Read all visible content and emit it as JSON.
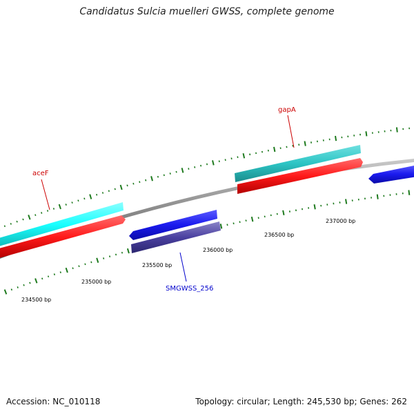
{
  "title": "Candidatus Sulcia muelleri GWSS, complete genome",
  "footer": {
    "accession": "Accession: NC_010118",
    "summary": "Topology: circular; Length: 245,530 bp; Genes: 262"
  },
  "colors": {
    "backbone": "#8c8c8c",
    "tick_major": "#1e7a1e",
    "tick_minor": "#2e8b2e",
    "forward_cds": "#ff2020",
    "forward_gene_light": "#19ffff",
    "forward_gene_dark": "#2cc8c8",
    "reverse_cds": "#1a1aee",
    "reverse_gene": "#4a40a0",
    "label_forward": "#cc0000",
    "label_reverse": "#0000cc"
  },
  "tick_labels": [
    {
      "text": "234500 bp"
    },
    {
      "text": "235000 bp"
    },
    {
      "text": "235500 bp"
    },
    {
      "text": "236000 bp"
    },
    {
      "text": "236500 bp"
    },
    {
      "text": "237000 bp"
    }
  ],
  "genes": [
    {
      "name": "aceF",
      "strand": "forward"
    },
    {
      "name": "gapA",
      "strand": "forward"
    },
    {
      "name": "SMGWSS_256",
      "strand": "reverse"
    }
  ]
}
